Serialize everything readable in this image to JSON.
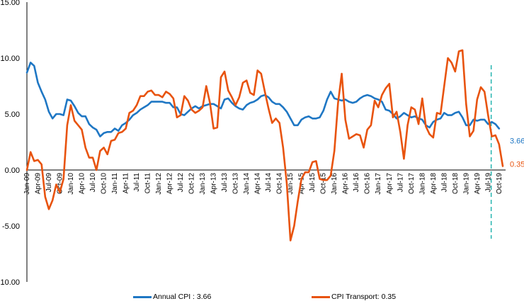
{
  "colors": {
    "annual_cpi": "#1f77c4",
    "cpi_transport": "#e8530e",
    "marker": "#26b5b0"
  },
  "chart_data": {
    "type": "line",
    "ylim": [
      -10,
      15
    ],
    "yticks": [
      "15.00",
      "10.00",
      "5.00",
      "0.00",
      "-5.00",
      "-10.00"
    ],
    "ytick_values": [
      15,
      10,
      5,
      0,
      -5,
      -10
    ],
    "start_month": "2009-01",
    "xtick_labels": [
      "Jan-09",
      "Apr-09",
      "Jul-09",
      "Oct-09",
      "Jan-10",
      "Apr-10",
      "Jul-10",
      "Oct-10",
      "Jan-11",
      "Apr-11",
      "Jul-11",
      "Oct-11",
      "Jan-12",
      "Apr-12",
      "Jul-12",
      "Oct-12",
      "Jan-13",
      "Apr-13",
      "Jul-13",
      "Oct-13",
      "Jan-14",
      "Apr-14",
      "Jul-14",
      "Oct-14",
      "Jan-15",
      "Apr-15",
      "Jul-15",
      "Oct-15",
      "Jan-16",
      "Apr-16",
      "Jul-16",
      "Oct-16",
      "Jan-17",
      "Apr-17",
      "Jul-17",
      "Oct-17",
      "Jan-18",
      "Apr-18",
      "Jul-18",
      "Oct-18",
      "Jan-19",
      "Apr-19",
      "Jul-19",
      "Oct-19"
    ],
    "vertical_marker_index": 128,
    "series": [
      {
        "name": "Annual CPI",
        "end_label": "3.66",
        "values": [
          8.7,
          9.6,
          9.3,
          7.8,
          7.0,
          6.3,
          5.2,
          4.6,
          5.0,
          5.0,
          4.9,
          6.3,
          6.2,
          5.7,
          5.1,
          4.8,
          4.8,
          4.1,
          3.8,
          3.6,
          3.0,
          3.3,
          3.4,
          3.4,
          3.7,
          3.5,
          4.0,
          4.2,
          4.5,
          4.9,
          5.1,
          5.4,
          5.6,
          5.8,
          6.1,
          6.1,
          6.1,
          6.1,
          6.0,
          6.0,
          5.6,
          5.6,
          5.0,
          4.9,
          5.2,
          5.5,
          5.7,
          5.5,
          5.7,
          5.8,
          5.9,
          5.9,
          5.7,
          5.5,
          6.3,
          6.4,
          6.0,
          5.7,
          5.5,
          5.4,
          5.8,
          6.0,
          6.1,
          6.3,
          6.6,
          6.7,
          6.5,
          6.1,
          5.9,
          5.9,
          5.6,
          5.2,
          4.6,
          4.0,
          4.0,
          4.5,
          4.7,
          4.8,
          4.6,
          4.6,
          4.7,
          5.3,
          6.3,
          7.0,
          6.4,
          6.3,
          6.2,
          6.3,
          6.1,
          6.0,
          6.1,
          6.4,
          6.6,
          6.7,
          6.6,
          6.4,
          6.3,
          6.1,
          5.4,
          5.3,
          5.0,
          4.6,
          4.8,
          5.1,
          4.9,
          4.7,
          4.8,
          4.6,
          4.5,
          4.0,
          3.8,
          4.3,
          4.5,
          4.6,
          5.1,
          4.9,
          4.9,
          5.1,
          5.2,
          4.7,
          4.0,
          4.0,
          4.5,
          4.4,
          4.5,
          4.5,
          4.1,
          4.3,
          4.1,
          3.7
        ]
      },
      {
        "name": "CPI Transport",
        "end_label": "0.35",
        "values": [
          0.0,
          1.6,
          0.8,
          0.9,
          0.5,
          -2.4,
          -3.5,
          -2.7,
          -1.3,
          -2.0,
          -0.8,
          4.0,
          5.8,
          4.4,
          4.0,
          3.6,
          2.0,
          1.1,
          1.1,
          0.0,
          1.7,
          2.0,
          1.4,
          2.6,
          2.7,
          3.3,
          3.4,
          3.7,
          5.1,
          5.3,
          5.8,
          6.6,
          6.6,
          7.0,
          7.1,
          6.7,
          6.7,
          6.5,
          7.0,
          6.8,
          6.4,
          4.7,
          4.9,
          6.6,
          6.2,
          5.4,
          5.1,
          5.3,
          5.6,
          7.5,
          6.0,
          3.7,
          3.8,
          8.3,
          8.8,
          7.1,
          6.5,
          5.8,
          6.5,
          7.8,
          8.0,
          6.9,
          6.7,
          8.9,
          8.6,
          7.0,
          5.5,
          4.2,
          4.6,
          4.2,
          2.0,
          -1.2,
          -6.3,
          -5.0,
          -2.8,
          -0.8,
          -0.2,
          -0.2,
          0.7,
          0.8,
          -0.8,
          -0.9,
          -0.9,
          -0.5,
          1.7,
          6.0,
          8.6,
          4.5,
          2.8,
          3.0,
          3.2,
          3.1,
          2.0,
          3.6,
          4.0,
          6.2,
          5.6,
          6.7,
          7.3,
          7.7,
          4.7,
          5.2,
          3.4,
          1.0,
          4.0,
          5.6,
          5.4,
          4.1,
          6.4,
          3.9,
          3.2,
          2.9,
          5.1,
          5.0,
          7.5,
          10.0,
          9.6,
          8.8,
          10.6,
          10.7,
          5.9,
          3.0,
          3.5,
          6.3,
          7.4,
          7.0,
          4.9,
          3.0,
          3.1,
          2.3,
          0.35
        ]
      }
    ]
  },
  "legend": {
    "annual_cpi": "Annual CPI : 3.66",
    "cpi_transport": "CPI Transport: 0.35"
  }
}
